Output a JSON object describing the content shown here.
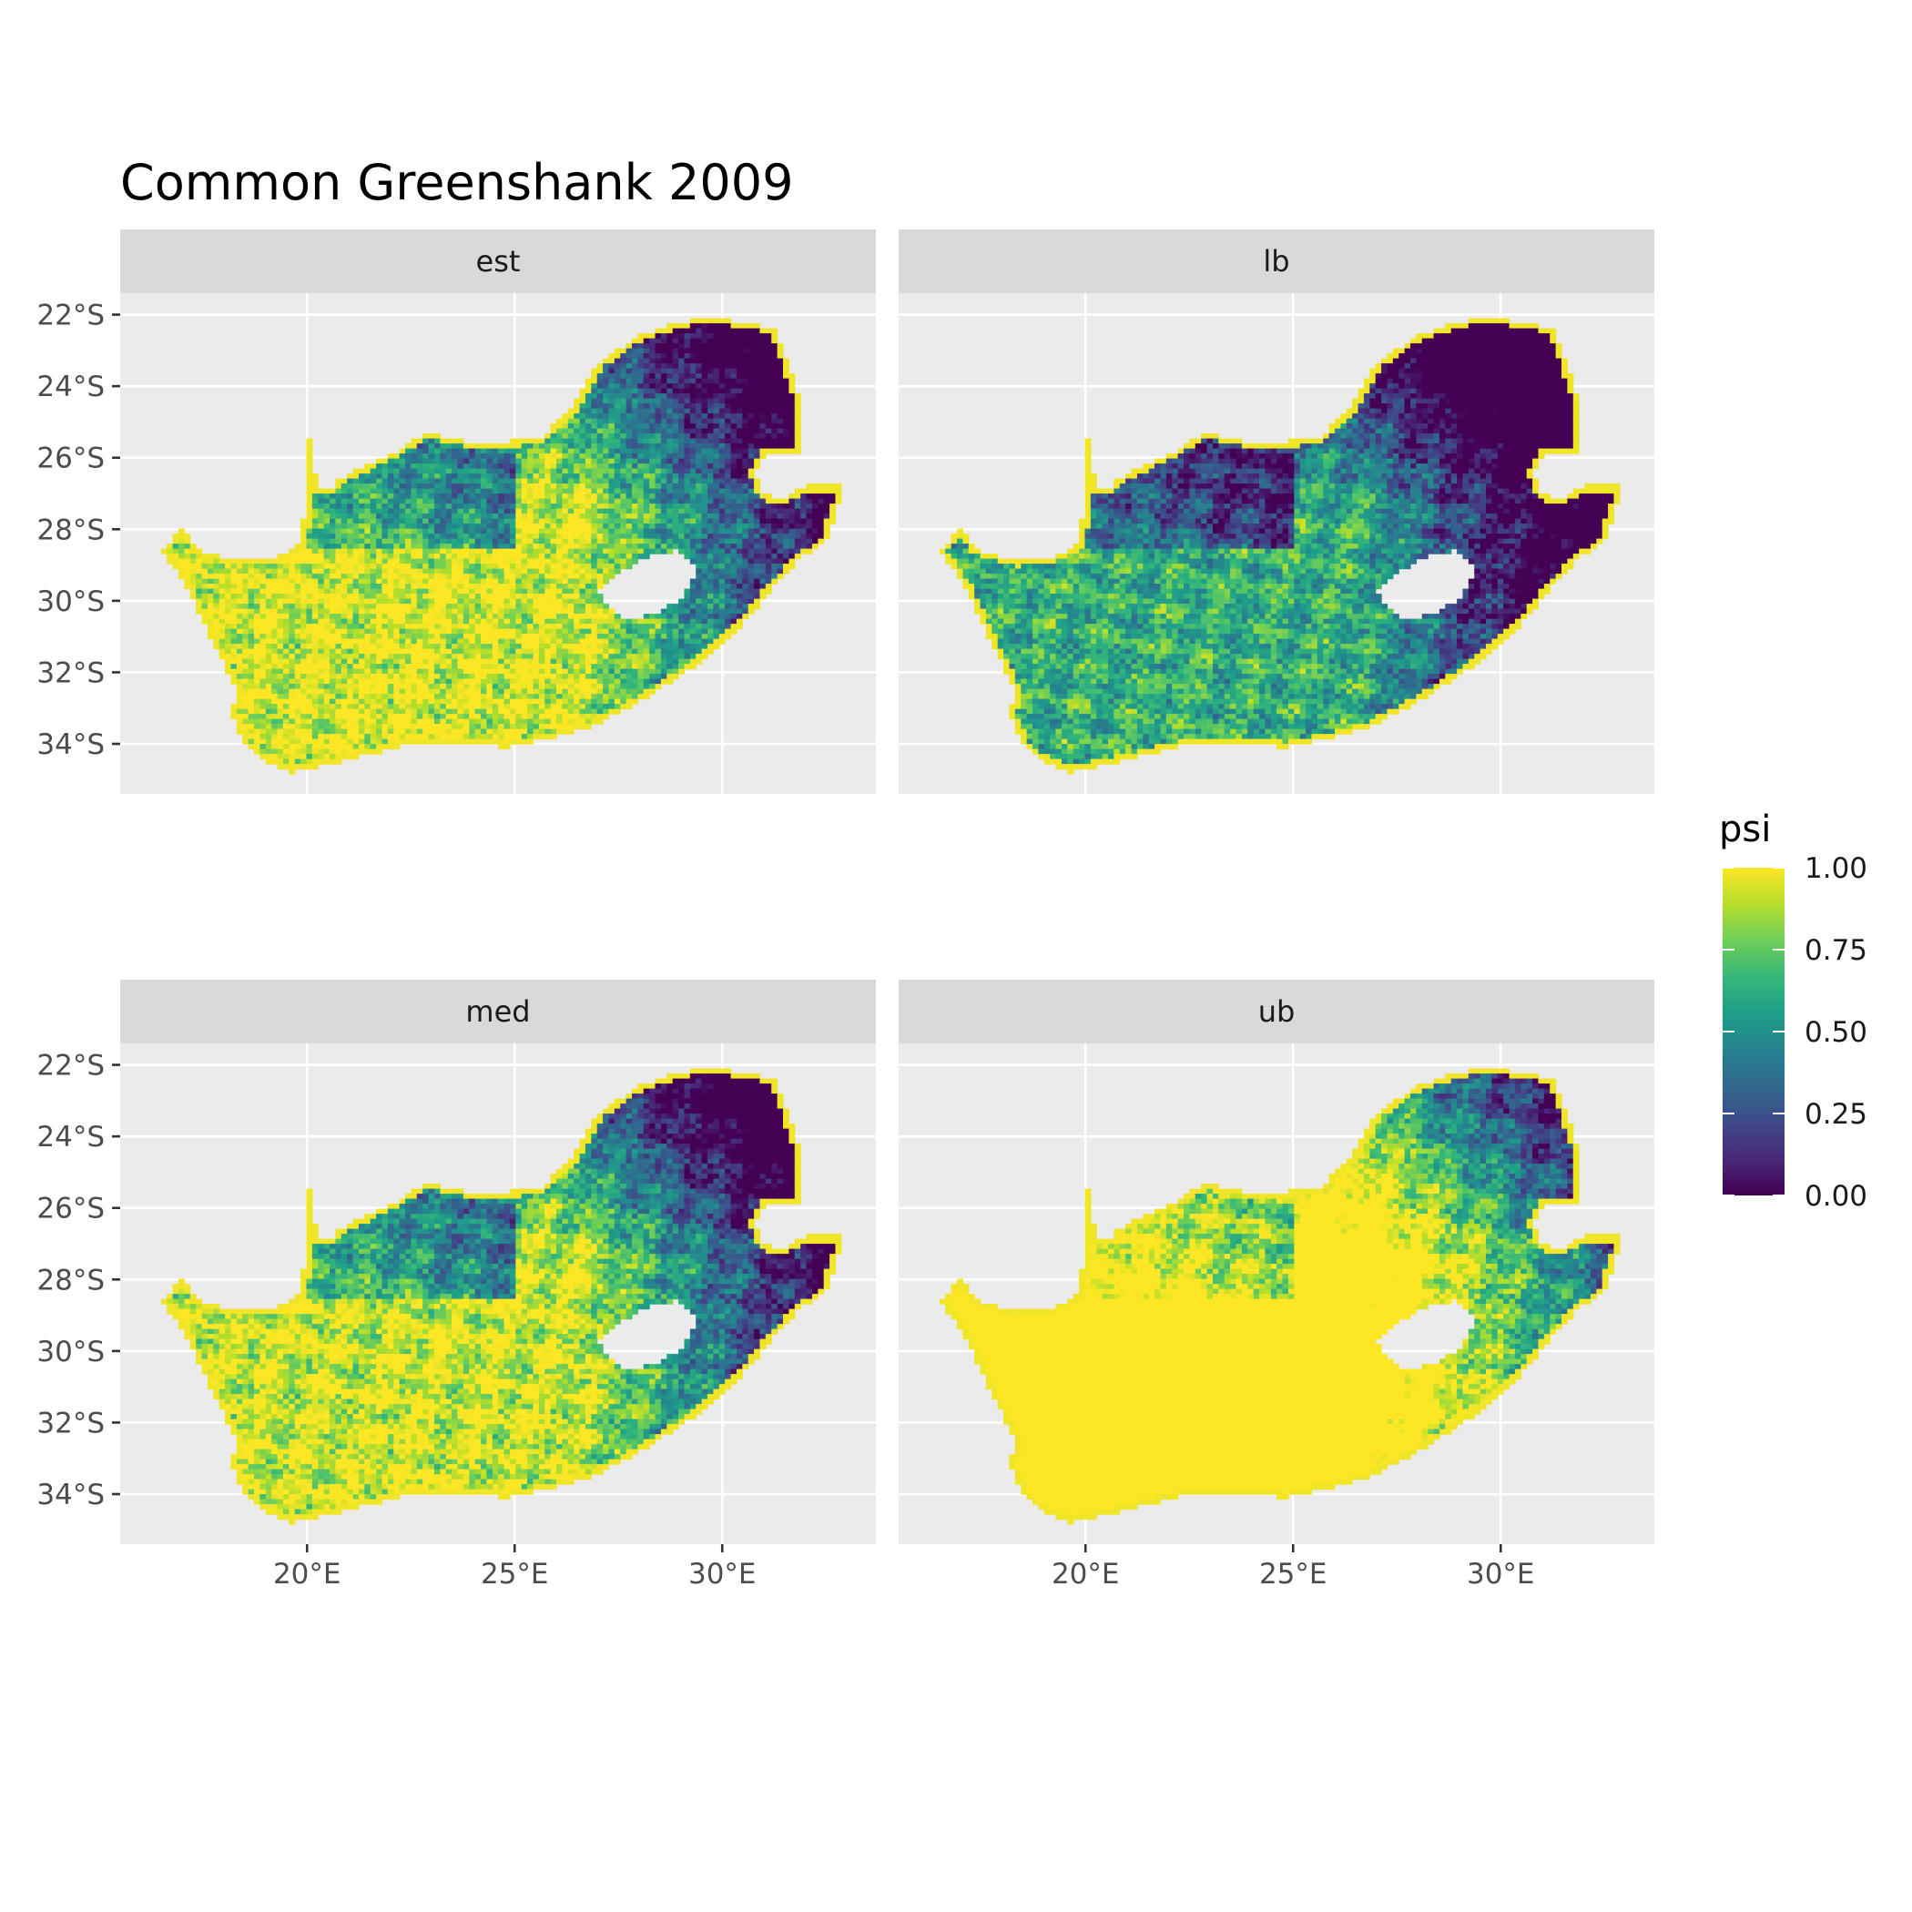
{
  "title": "Common Greenshank 2009",
  "panels": [
    {
      "label": "est",
      "regime": "est"
    },
    {
      "label": "lb",
      "regime": "lb"
    },
    {
      "label": "med",
      "regime": "med"
    },
    {
      "label": "ub",
      "regime": "ub"
    }
  ],
  "axes": {
    "x_ticks": [
      {
        "value": 20,
        "label": "20°E"
      },
      {
        "value": 25,
        "label": "25°E"
      },
      {
        "value": 30,
        "label": "30°E"
      }
    ],
    "y_ticks": [
      {
        "value": -22,
        "label": "22°S"
      },
      {
        "value": -24,
        "label": "24°S"
      },
      {
        "value": -26,
        "label": "26°S"
      },
      {
        "value": -28,
        "label": "28°S"
      },
      {
        "value": -30,
        "label": "30°S"
      },
      {
        "value": -32,
        "label": "32°S"
      },
      {
        "value": -34,
        "label": "34°S"
      }
    ],
    "xlim": [
      15.5,
      33.7
    ],
    "ylim": [
      -35.4,
      -21.4
    ]
  },
  "legend": {
    "title": "psi",
    "range": [
      0,
      1
    ],
    "breaks": [
      {
        "value": 0,
        "label": "0.00"
      },
      {
        "value": 0.25,
        "label": "0.25"
      },
      {
        "value": 0.5,
        "label": "0.50"
      },
      {
        "value": 0.75,
        "label": "0.75"
      },
      {
        "value": 1,
        "label": "1.00"
      }
    ],
    "palette": [
      "#440154",
      "#482878",
      "#3e4a89",
      "#31688e",
      "#26828e",
      "#1f9e89",
      "#35b779",
      "#6ece58",
      "#b5de2b",
      "#fde725"
    ]
  },
  "colors": {
    "panel_background": "#ebebeb",
    "strip_background": "#d9d9d9",
    "grid": "#ffffff"
  }
}
